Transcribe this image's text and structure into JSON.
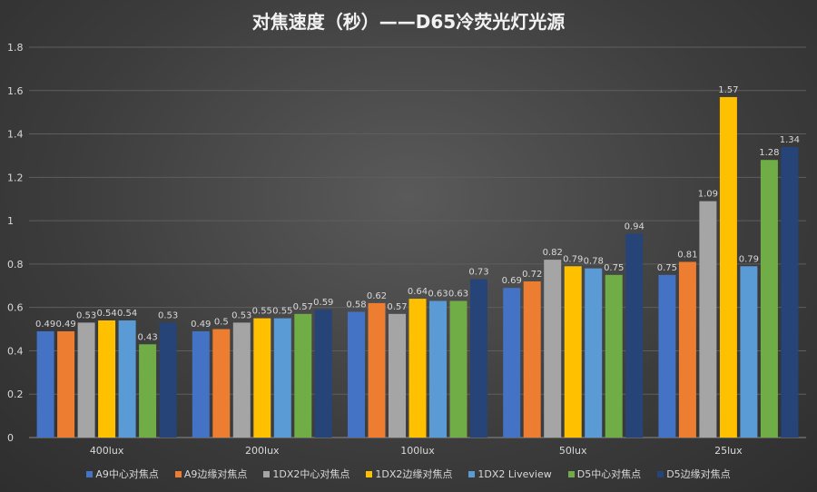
{
  "chart_data": {
    "type": "bar",
    "title": "对焦速度（秒）——D65冷荧光灯光源",
    "xlabel": "",
    "ylabel": "",
    "ylim": [
      0,
      1.8
    ],
    "yticks": [
      "0",
      "0.2",
      "0.4",
      "0.6",
      "0.8",
      "1",
      "1.2",
      "1.4",
      "1.6",
      "1.8"
    ],
    "grid": true,
    "legend_position": "bottom",
    "categories": [
      "400lux",
      "200lux",
      "100lux",
      "50lux",
      "25lux"
    ],
    "series": [
      {
        "name": "A9中心对焦点",
        "color": "#4472C4",
        "values": [
          0.49,
          0.49,
          0.58,
          0.69,
          0.75
        ]
      },
      {
        "name": "A9边缘对焦点",
        "color": "#ED7D31",
        "values": [
          0.49,
          0.5,
          0.62,
          0.72,
          0.81
        ]
      },
      {
        "name": "1DX2中心对焦点",
        "color": "#A5A5A5",
        "values": [
          0.53,
          0.53,
          0.57,
          0.82,
          1.09
        ]
      },
      {
        "name": "1DX2边缘对焦点",
        "color": "#FFC000",
        "values": [
          0.54,
          0.55,
          0.64,
          0.79,
          1.57
        ]
      },
      {
        "name": "1DX2 Liveview",
        "color": "#5B9BD5",
        "values": [
          0.54,
          0.55,
          0.63,
          0.78,
          0.79
        ]
      },
      {
        "name": "D5中心对焦点",
        "color": "#70AD47",
        "values": [
          0.43,
          0.57,
          0.63,
          0.75,
          1.28
        ]
      },
      {
        "name": "D5边缘对焦点",
        "color": "#264478",
        "values": [
          0.53,
          0.59,
          0.73,
          0.94,
          1.34
        ]
      }
    ]
  }
}
